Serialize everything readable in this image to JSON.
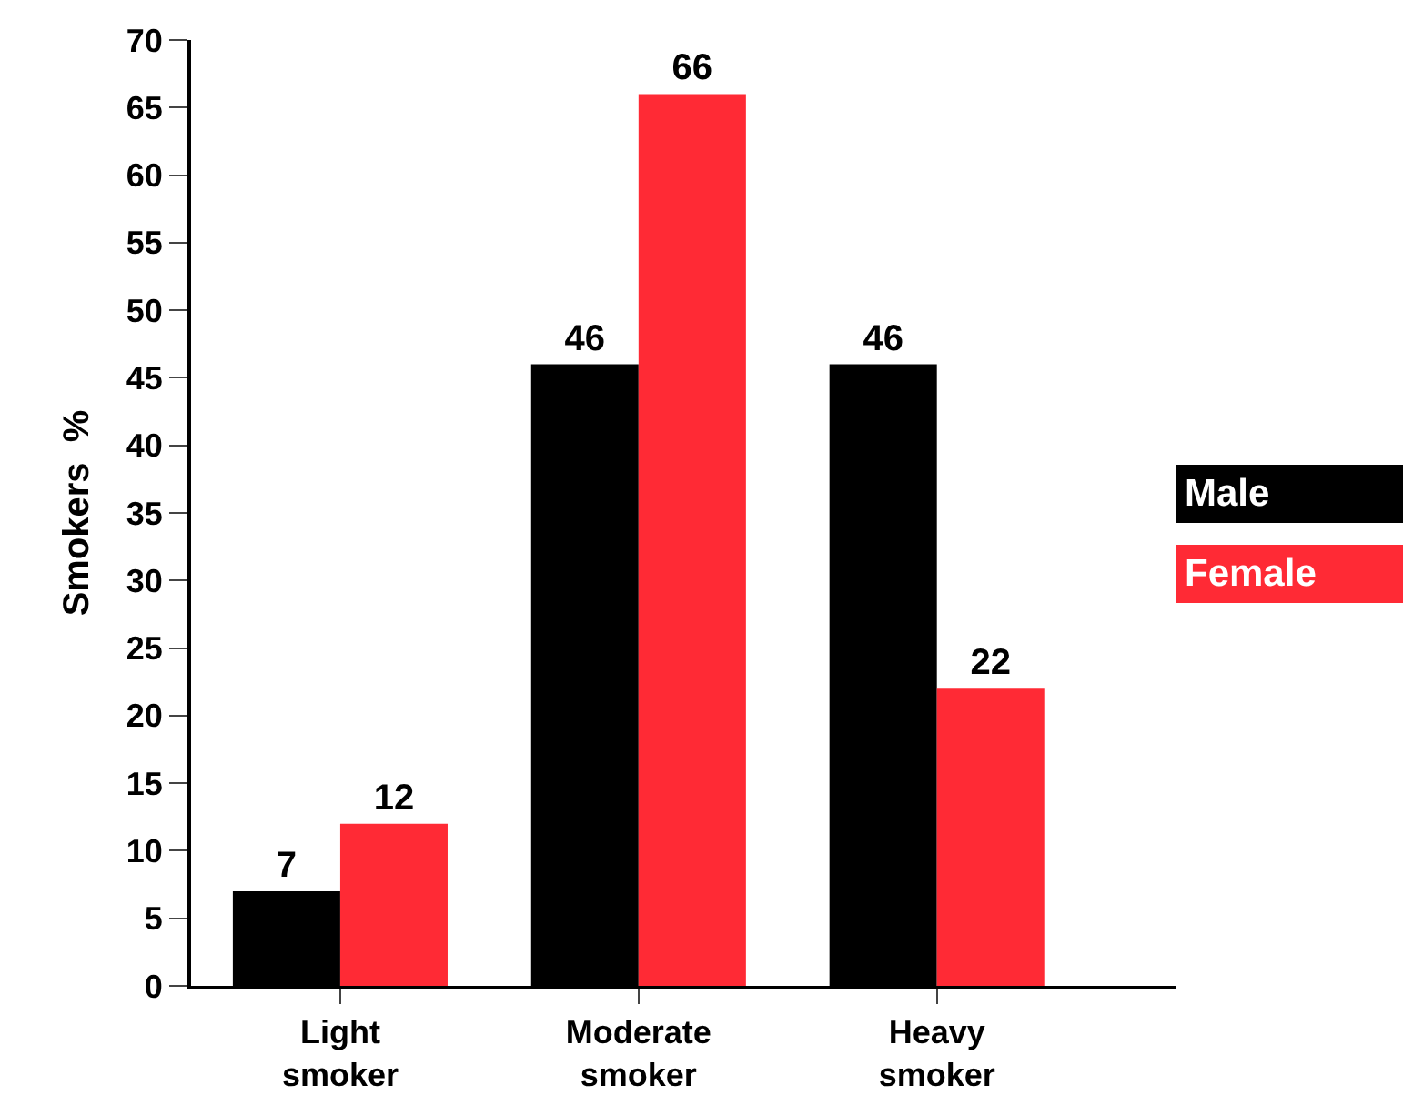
{
  "chart_data": {
    "type": "bar",
    "ylabel": "Smokers  %",
    "categories": [
      "Light\nsmoker",
      "Moderate\nsmoker",
      "Heavy\nsmoker"
    ],
    "series": [
      {
        "name": "Male",
        "color": "#000000",
        "values": [
          7,
          46,
          46
        ]
      },
      {
        "name": "Female",
        "color": "#ff2a35",
        "values": [
          12,
          66,
          22
        ]
      }
    ],
    "ylim": [
      0,
      70
    ],
    "yticks": [
      0,
      5,
      10,
      15,
      20,
      25,
      30,
      35,
      40,
      45,
      50,
      55,
      60,
      65,
      70
    ],
    "data_labels": true,
    "legend": "right"
  }
}
